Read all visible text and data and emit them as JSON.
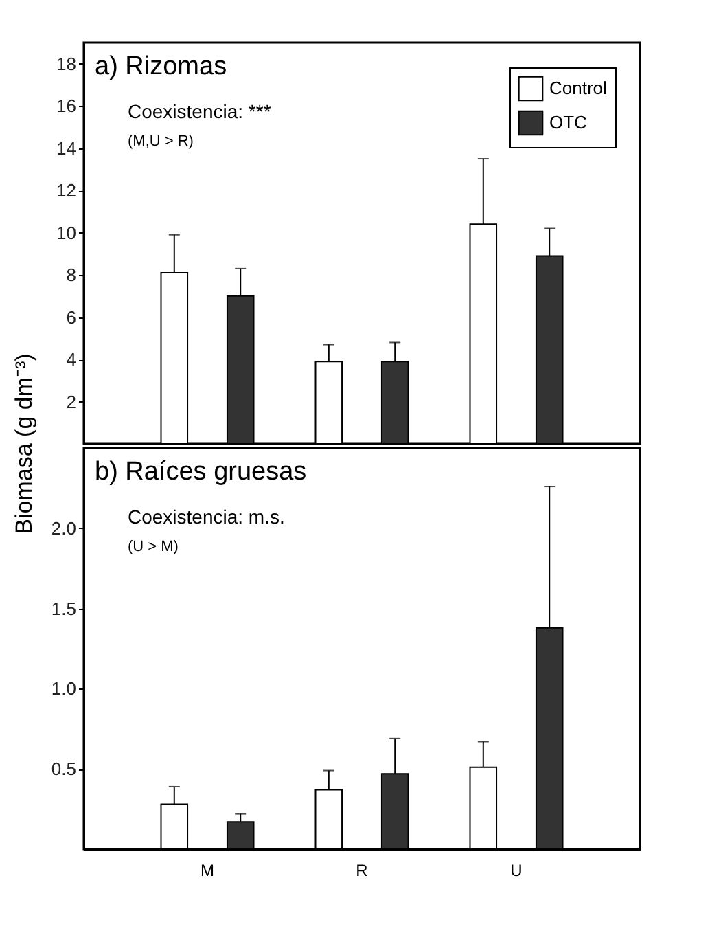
{
  "chart_data": [
    {
      "type": "bar",
      "title": "a) Rizomas",
      "ylabel": "Biomasa (g dm⁻³)",
      "annotations": [
        "Coexistencia: ***",
        "(M,U > R)"
      ],
      "categories": [
        null,
        null,
        null
      ],
      "series": [
        {
          "name": "Control",
          "color": "#ffffff",
          "values": [
            8.1,
            3.9,
            10.4
          ],
          "errors": [
            [
              8.1,
              9.9
            ],
            [
              3.9,
              4.7
            ],
            [
              10.4,
              13.5
            ]
          ]
        },
        {
          "name": "OTC",
          "color": "#333333",
          "values": [
            7.0,
            3.9,
            8.9
          ],
          "errors": [
            [
              7.0,
              8.3
            ],
            [
              3.9,
              4.8
            ],
            [
              8.9,
              10.2
            ]
          ]
        }
      ],
      "ylim": [
        0,
        19
      ],
      "yticks": [
        2,
        4,
        6,
        8,
        10,
        12,
        14,
        16,
        18
      ],
      "grid": false,
      "legend": "top right",
      "tick_labels": "y"
    },
    {
      "type": "bar",
      "title": "b) Raíces gruesas",
      "annotations": [
        "Coexistencia: m.s.",
        "(U > M)"
      ],
      "categories": [
        "M",
        "R",
        "U"
      ],
      "series": [
        {
          "name": "Control",
          "color": "#ffffff",
          "values": [
            0.28,
            0.37,
            0.51
          ],
          "errors": [
            [
              0.28,
              0.39
            ],
            [
              0.37,
              0.49
            ],
            [
              0.51,
              0.67
            ]
          ]
        },
        {
          "name": "OTC",
          "color": "#333333",
          "values": [
            0.17,
            0.47,
            1.38
          ],
          "errors": [
            [
              0.17,
              0.22
            ],
            [
              0.47,
              0.69
            ],
            [
              1.38,
              2.26
            ]
          ]
        }
      ],
      "ylim": [
        0,
        2.5
      ],
      "yticks": [
        {
          "value": 0.5,
          "label": "0.5"
        },
        {
          "value": 1,
          "label": "1.0"
        },
        {
          "value": 1.5,
          "label": "1.5"
        },
        {
          "value": 2,
          "label": "2.0"
        }
      ],
      "grid": false,
      "legend": false
    }
  ]
}
